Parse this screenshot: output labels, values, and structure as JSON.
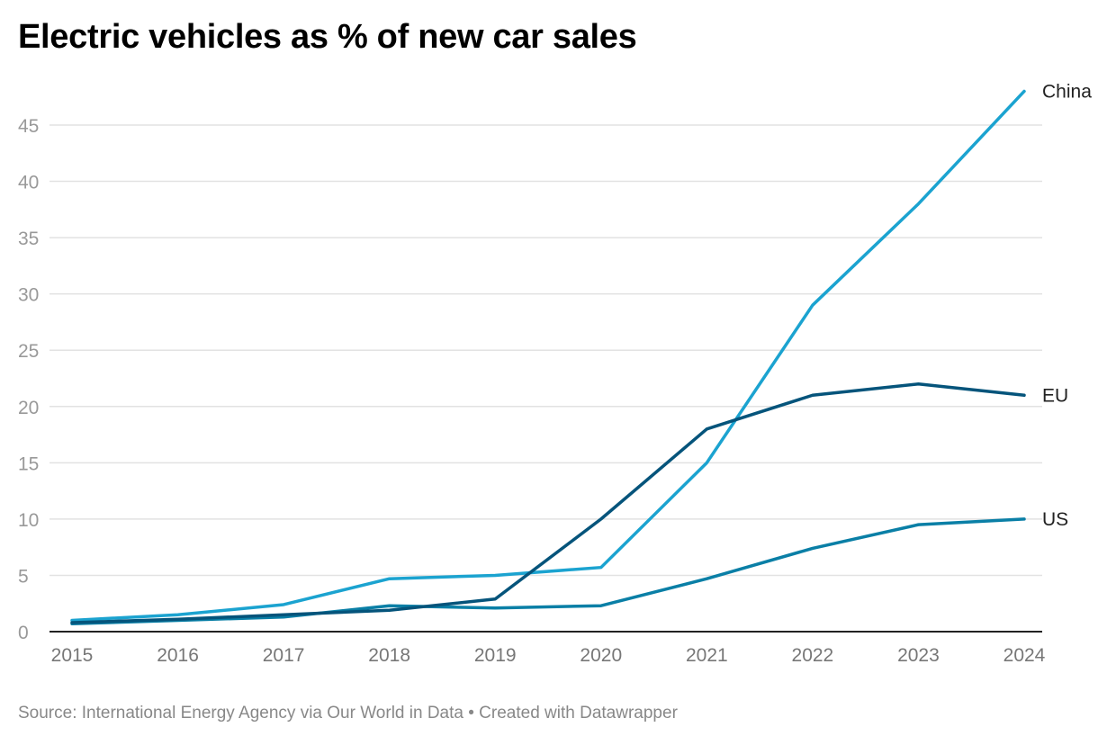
{
  "chart_data": {
    "type": "line",
    "title": "Electric vehicles as % of new car sales",
    "xlabel": "",
    "ylabel": "",
    "x": [
      2015,
      2016,
      2017,
      2018,
      2019,
      2020,
      2021,
      2022,
      2023,
      2024
    ],
    "x_ticks": [
      "2015",
      "2016",
      "2017",
      "2018",
      "2019",
      "2020",
      "2021",
      "2022",
      "2023",
      "2024"
    ],
    "ylim": [
      0,
      48
    ],
    "y_ticks": [
      "0",
      "5",
      "10",
      "15",
      "20",
      "25",
      "30",
      "35",
      "40",
      "45"
    ],
    "grid": true,
    "legend": "direct labels at line ends (right)",
    "series": [
      {
        "name": "China",
        "color": "#1ba3d0",
        "values": [
          1.0,
          1.5,
          2.4,
          4.7,
          5.0,
          5.7,
          15,
          29,
          38,
          48
        ]
      },
      {
        "name": "EU",
        "color": "#05547b",
        "values": [
          0.8,
          1.1,
          1.5,
          1.9,
          2.9,
          10,
          18,
          21,
          22,
          21
        ]
      },
      {
        "name": "US",
        "color": "#0a7fa6",
        "values": [
          0.7,
          1.0,
          1.3,
          2.3,
          2.1,
          2.3,
          4.7,
          7.4,
          9.5,
          10
        ]
      }
    ]
  },
  "footer": "Source: International Energy Agency via Our World in Data • Created with Datawrapper"
}
